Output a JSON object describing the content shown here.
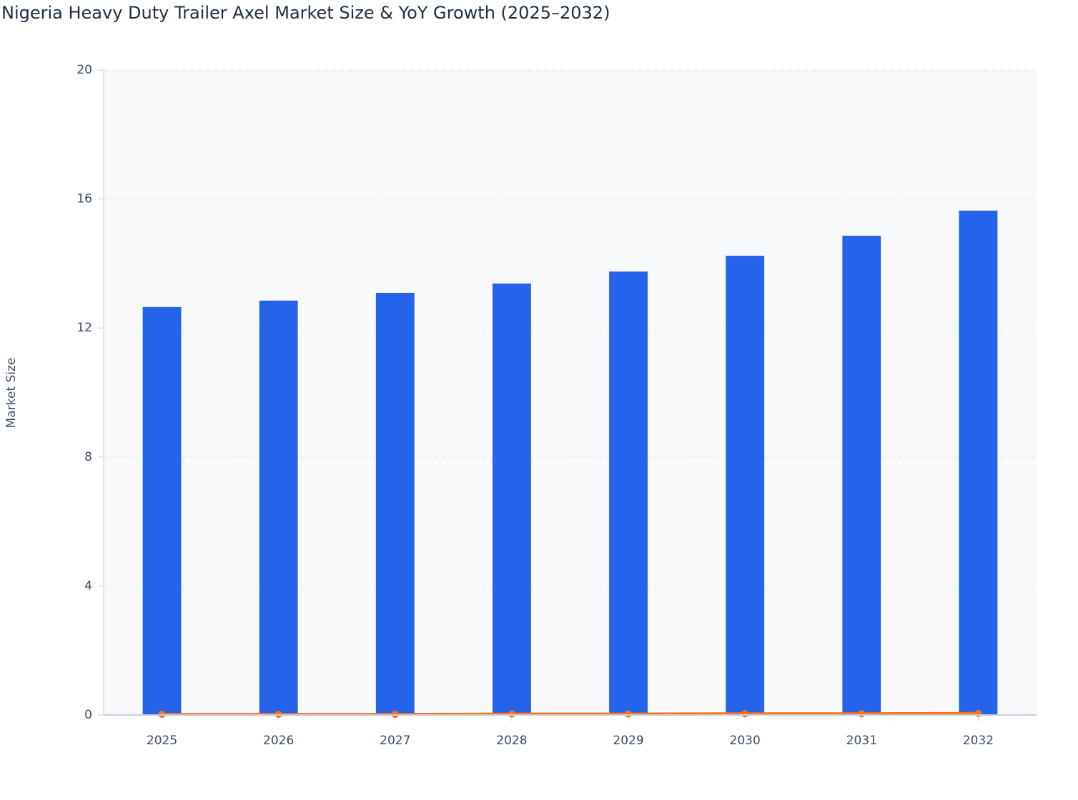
{
  "chart_data": {
    "type": "bar",
    "title": "Nigeria Heavy Duty Trailer Axel Market Size & YoY Growth (2025–2032)",
    "y_label": "Market Size",
    "categories": [
      "2025",
      "2026",
      "2027",
      "2028",
      "2029",
      "2030",
      "2031",
      "2032"
    ],
    "series": [
      {
        "type": "bar",
        "color": "#2563eb",
        "values": [
          12.65,
          12.85,
          13.09,
          13.38,
          13.75,
          14.24,
          14.86,
          15.64
        ]
      },
      {
        "type": "line",
        "color": "#f97316",
        "values": [
          0.02,
          0.02,
          0.02,
          0.03,
          0.03,
          0.04,
          0.04,
          0.05
        ]
      }
    ],
    "ylim": [
      0,
      20
    ],
    "yticks": [
      0,
      4,
      8,
      12,
      16,
      20
    ],
    "grid": true
  }
}
